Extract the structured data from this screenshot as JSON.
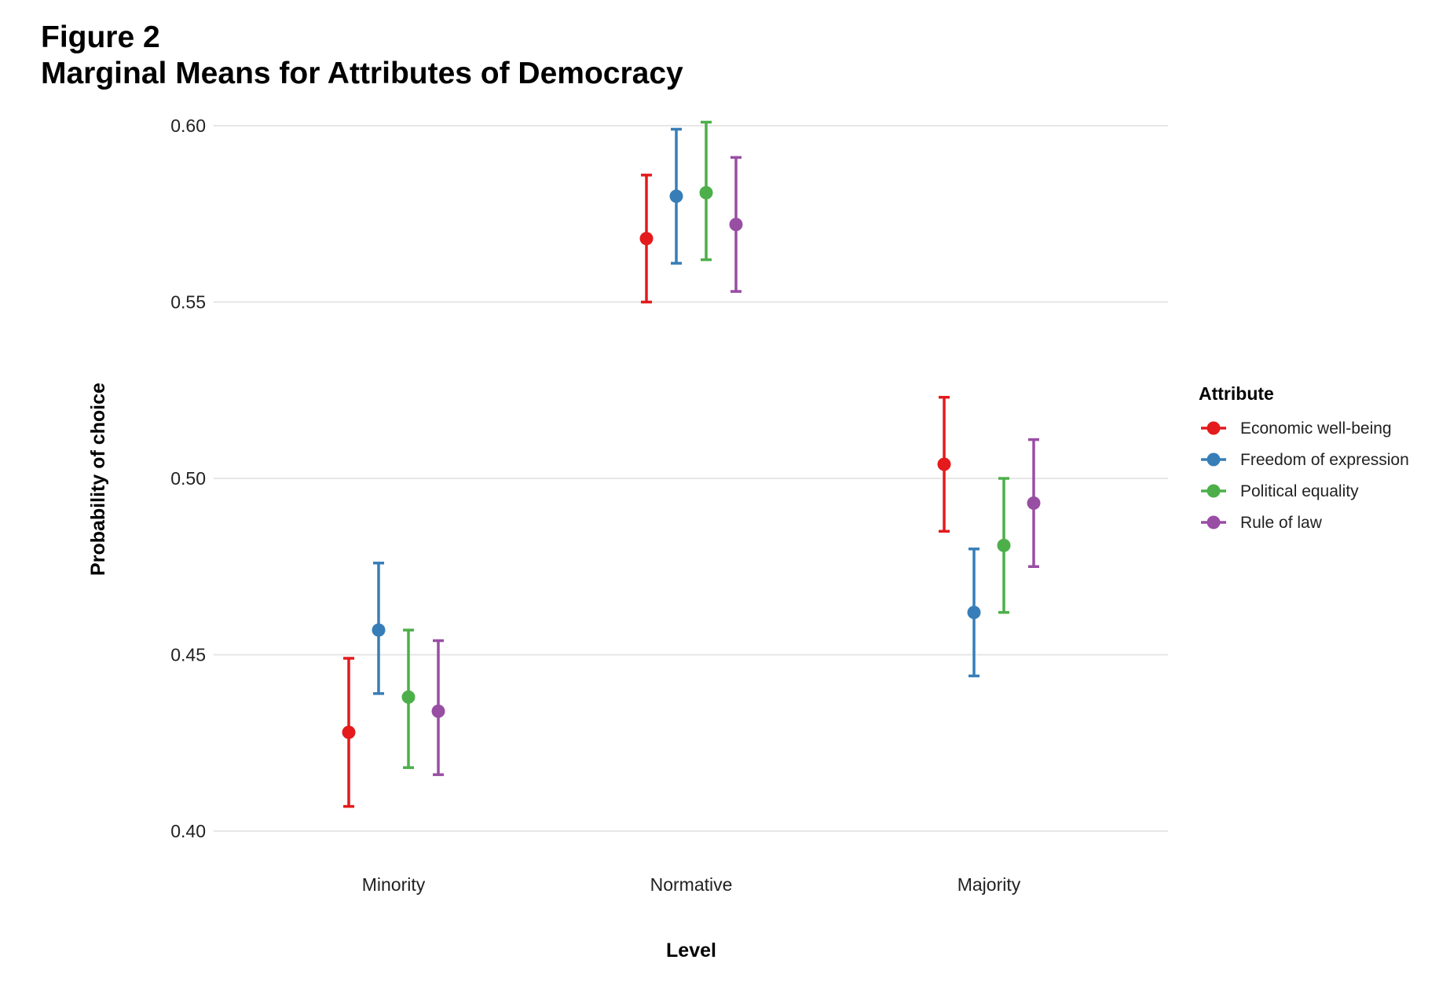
{
  "chart_data": {
    "type": "scatter",
    "subtype": "point-with-errorbars",
    "figure_label": "Figure 2",
    "title": "Marginal Means for Attributes of Democracy",
    "xlabel": "Level",
    "ylabel": "Probability of choice",
    "categories": [
      "Minority",
      "Normative",
      "Majority"
    ],
    "ylim": [
      0.39,
      0.605
    ],
    "yticks": [
      0.4,
      0.45,
      0.5,
      0.55,
      0.6
    ],
    "ytick_labels": [
      "0.40",
      "0.45",
      "0.50",
      "0.55",
      "0.60"
    ],
    "grid": true,
    "legend": {
      "title": "Attribute",
      "placement": "right"
    },
    "series": [
      {
        "name": "Economic well-being",
        "color": "#e41a1c",
        "values": [
          0.428,
          0.568,
          0.504
        ],
        "lower": [
          0.407,
          0.55,
          0.485
        ],
        "upper": [
          0.449,
          0.586,
          0.523
        ]
      },
      {
        "name": "Freedom of expression",
        "color": "#377eb8",
        "values": [
          0.457,
          0.58,
          0.462
        ],
        "lower": [
          0.439,
          0.561,
          0.444
        ],
        "upper": [
          0.476,
          0.599,
          0.48
        ]
      },
      {
        "name": "Political equality",
        "color": "#4daf4a",
        "values": [
          0.438,
          0.581,
          0.481
        ],
        "lower": [
          0.418,
          0.562,
          0.462
        ],
        "upper": [
          0.457,
          0.601,
          0.5
        ]
      },
      {
        "name": "Rule of law",
        "color": "#984ea3",
        "values": [
          0.434,
          0.572,
          0.493
        ],
        "lower": [
          0.416,
          0.553,
          0.475
        ],
        "upper": [
          0.454,
          0.591,
          0.511
        ]
      }
    ]
  }
}
